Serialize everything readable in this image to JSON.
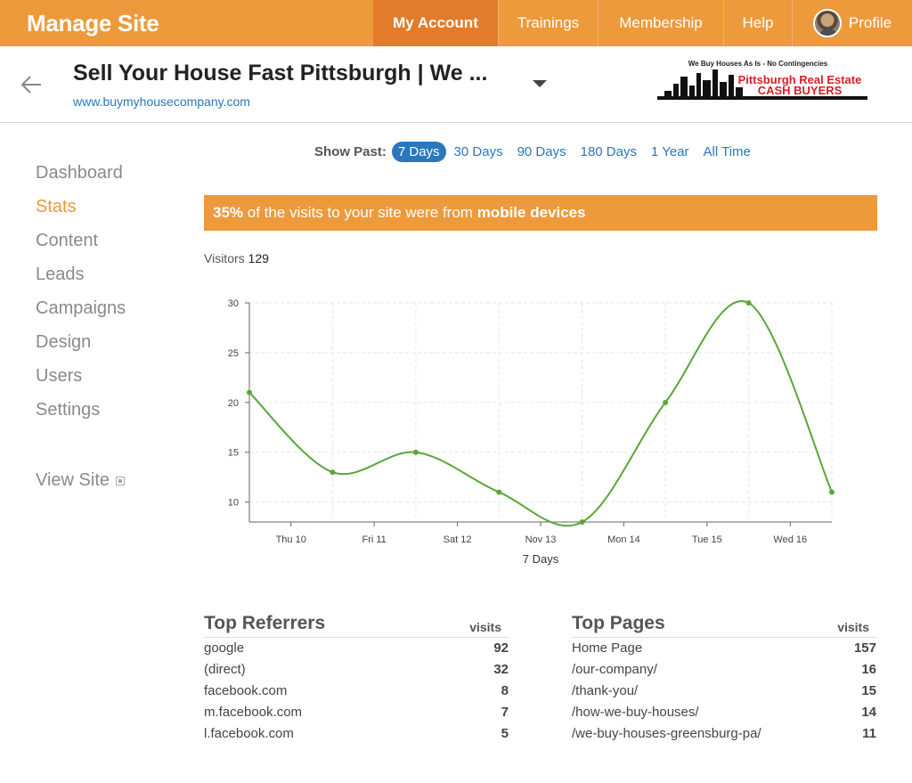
{
  "topnav": {
    "brand": "Manage Site",
    "items": [
      {
        "label": "My Account"
      },
      {
        "label": "Trainings"
      },
      {
        "label": "Membership"
      },
      {
        "label": "Help"
      },
      {
        "label": "Profile"
      }
    ]
  },
  "header": {
    "title": "Sell Your House Fast Pittsburgh | We ...",
    "url": "www.buymyhousecompany.com",
    "logo": {
      "tagline": "We Buy Houses As Is - No Contingencies",
      "line1": "Pittsburgh Real Estate",
      "line2": "CASH BUYERS"
    }
  },
  "sidebar": {
    "items": [
      {
        "label": "Dashboard"
      },
      {
        "label": "Stats"
      },
      {
        "label": "Content"
      },
      {
        "label": "Leads"
      },
      {
        "label": "Campaigns"
      },
      {
        "label": "Design"
      },
      {
        "label": "Users"
      },
      {
        "label": "Settings"
      }
    ],
    "view_site": "View Site"
  },
  "range": {
    "label": "Show Past:",
    "options": [
      "7 Days",
      "30 Days",
      "90 Days",
      "180 Days",
      "1 Year",
      "All Time"
    ],
    "selected": "7 Days"
  },
  "banner": {
    "percent": "35%",
    "middle": " of the visits to your site were from ",
    "emphasis": "mobile devices"
  },
  "visitors": {
    "label": "Visitors",
    "count": "129"
  },
  "chart_data": {
    "type": "line",
    "categories": [
      "Thu 10",
      "Fri 11",
      "Sat 12",
      "Nov 13",
      "Mon 14",
      "Tue 15",
      "Wed 16"
    ],
    "x": [
      0,
      1,
      2,
      3,
      4,
      5,
      6,
      7
    ],
    "values": [
      21,
      13,
      15,
      11,
      8,
      20,
      30,
      11
    ],
    "xlabel": "7 Days",
    "ylabel": "",
    "ylim": [
      8,
      30
    ],
    "yticks": [
      10,
      15,
      20,
      25,
      30
    ],
    "grid": true,
    "color": "#5aa63a"
  },
  "referrers": {
    "title": "Top Referrers",
    "col": "visits",
    "rows": [
      {
        "name": "google",
        "visits": "92"
      },
      {
        "name": "(direct)",
        "visits": "32"
      },
      {
        "name": "facebook.com",
        "visits": "8"
      },
      {
        "name": "m.facebook.com",
        "visits": "7"
      },
      {
        "name": "l.facebook.com",
        "visits": "5"
      }
    ]
  },
  "pages": {
    "title": "Top Pages",
    "col": "visits",
    "rows": [
      {
        "name": "Home Page",
        "visits": "157"
      },
      {
        "name": "/our-company/",
        "visits": "16"
      },
      {
        "name": "/thank-you/",
        "visits": "15"
      },
      {
        "name": "/how-we-buy-houses/",
        "visits": "14"
      },
      {
        "name": "/we-buy-houses-greensburg-pa/",
        "visits": "11"
      }
    ]
  },
  "colors": {
    "accent": "#ed9a3c",
    "accent_dark": "#e27c2b",
    "link": "#2a77bd"
  }
}
